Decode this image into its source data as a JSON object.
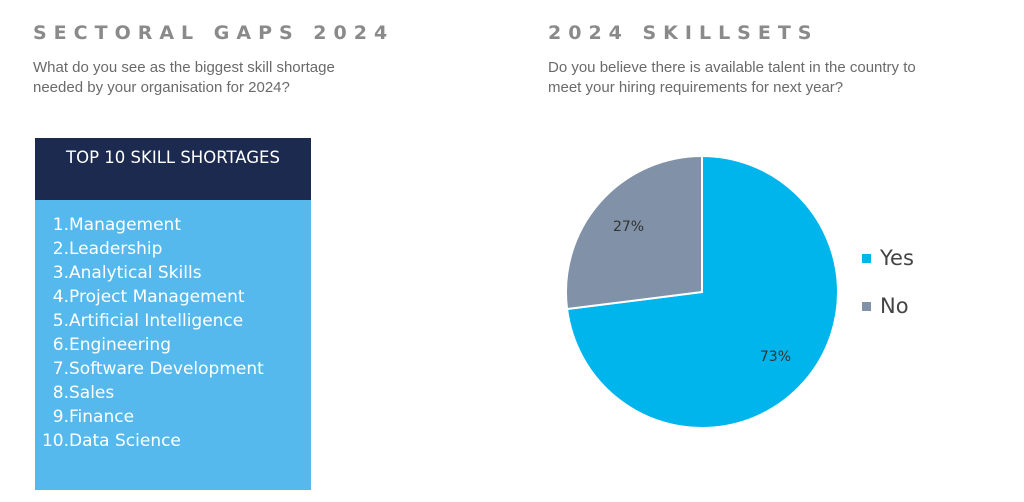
{
  "left_panel": {
    "title": "SECTORAL GAPS 2024",
    "subtitle": "What do you see as the biggest skill shortage needed by your organisation for 2024?",
    "box_header": "TOP 10 SKILL SHORTAGES",
    "skills": [
      {
        "num": "1.",
        "label": "Management"
      },
      {
        "num": "2.",
        "label": "Leadership"
      },
      {
        "num": "3.",
        "label": "Analytical Skills"
      },
      {
        "num": "4.",
        "label": "Project Management"
      },
      {
        "num": "5.",
        "label": "Artificial Intelligence"
      },
      {
        "num": "6.",
        "label": "Engineering"
      },
      {
        "num": "7.",
        "label": "Software Development"
      },
      {
        "num": "8.",
        "label": "Sales"
      },
      {
        "num": "9.",
        "label": "Finance"
      },
      {
        "num": "10.",
        "label": "Data Science"
      }
    ]
  },
  "right_panel": {
    "title": "2024 SKILLSETS",
    "subtitle": "Do you believe there is available talent in the country to meet your hiring requirements for next year?"
  },
  "chart_data": {
    "type": "pie",
    "categories": [
      "Yes",
      "No"
    ],
    "values": [
      73,
      27
    ],
    "labels": [
      "73%",
      "27%"
    ],
    "colors": [
      "#00b5ec",
      "#8091a8"
    ],
    "legend": "right"
  },
  "colors": {
    "header_bg": "#1b2a4e",
    "box_bg": "#56b9ee",
    "title_gray": "#8a8a8a"
  }
}
